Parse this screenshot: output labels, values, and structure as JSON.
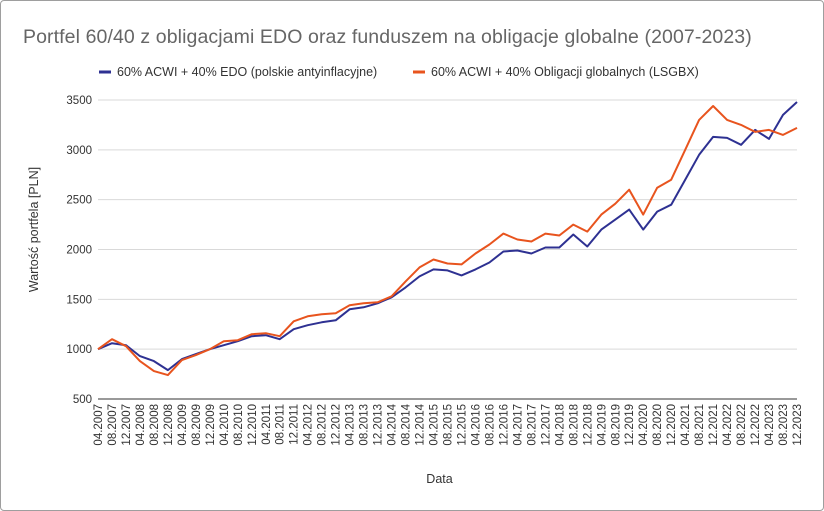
{
  "chart_data": {
    "type": "line",
    "title": "Portfel 60/40 z obligacjami EDO oraz funduszem na obligacje globalne (2007-2023)",
    "xlabel": "Data",
    "ylabel": "Wartość portfela [PLN]",
    "ylim": [
      500,
      3500
    ],
    "yticks": [
      500,
      1000,
      1500,
      2000,
      2500,
      3000,
      3500
    ],
    "grid": true,
    "legend_position": "top",
    "x_range": [
      "04.2007",
      "12.2023"
    ],
    "x_tick_labels": [
      "04.2007",
      "08.2007",
      "12.2007",
      "04.2008",
      "08.2008",
      "12.2008",
      "04.2009",
      "08.2009",
      "12.2009",
      "04.2010",
      "08.2010",
      "12.2010",
      "04.2011",
      "08.2011",
      "12.2011",
      "04.2012",
      "08.2012",
      "12.2012",
      "04.2013",
      "08.2013",
      "12.2013",
      "04.2014",
      "08.2014",
      "12.2014",
      "04.2015",
      "08.2015",
      "12.2015",
      "04.2016",
      "08.2016",
      "12.2016",
      "04.2017",
      "08.2017",
      "12.2017",
      "04.2018",
      "08.2018",
      "12.2018",
      "04.2019",
      "08.2019",
      "12.2019",
      "04.2020",
      "08.2020",
      "12.2020",
      "04.2021",
      "08.2021",
      "12.2021",
      "04.2022",
      "08.2022",
      "12.2022",
      "04.2023",
      "08.2023",
      "12.2023"
    ],
    "series": [
      {
        "name": "60% ACWI + 40% EDO (polskie antyinflacyjne)",
        "color": "#2e3192",
        "x": [
          "04.2007",
          "08.2007",
          "12.2007",
          "04.2008",
          "08.2008",
          "12.2008",
          "04.2009",
          "08.2009",
          "12.2009",
          "04.2010",
          "08.2010",
          "12.2010",
          "04.2011",
          "08.2011",
          "12.2011",
          "04.2012",
          "08.2012",
          "12.2012",
          "04.2013",
          "08.2013",
          "12.2013",
          "04.2014",
          "08.2014",
          "12.2014",
          "04.2015",
          "08.2015",
          "12.2015",
          "04.2016",
          "08.2016",
          "12.2016",
          "04.2017",
          "08.2017",
          "12.2017",
          "04.2018",
          "08.2018",
          "12.2018",
          "04.2019",
          "08.2019",
          "12.2019",
          "04.2020",
          "08.2020",
          "12.2020",
          "04.2021",
          "08.2021",
          "12.2021",
          "04.2022",
          "08.2022",
          "12.2022",
          "04.2023",
          "08.2023",
          "12.2023"
        ],
        "values": [
          1000,
          1060,
          1040,
          930,
          880,
          790,
          900,
          950,
          1000,
          1040,
          1080,
          1130,
          1140,
          1100,
          1200,
          1240,
          1270,
          1290,
          1400,
          1420,
          1460,
          1520,
          1620,
          1730,
          1800,
          1790,
          1740,
          1800,
          1870,
          1980,
          1990,
          1960,
          2020,
          2020,
          2150,
          2030,
          2200,
          2300,
          2400,
          2200,
          2380,
          2450,
          2700,
          2950,
          3130,
          3120,
          3050,
          3200,
          3110,
          3350,
          3480
        ]
      },
      {
        "name": "60% ACWI + 40% Obligacji globalnych (LSGBX)",
        "color": "#e8541e",
        "x": [
          "04.2007",
          "08.2007",
          "12.2007",
          "04.2008",
          "08.2008",
          "12.2008",
          "04.2009",
          "08.2009",
          "12.2009",
          "04.2010",
          "08.2010",
          "12.2010",
          "04.2011",
          "08.2011",
          "12.2011",
          "04.2012",
          "08.2012",
          "12.2012",
          "04.2013",
          "08.2013",
          "12.2013",
          "04.2014",
          "08.2014",
          "12.2014",
          "04.2015",
          "08.2015",
          "12.2015",
          "04.2016",
          "08.2016",
          "12.2016",
          "04.2017",
          "08.2017",
          "12.2017",
          "04.2018",
          "08.2018",
          "12.2018",
          "04.2019",
          "08.2019",
          "12.2019",
          "04.2020",
          "08.2020",
          "12.2020",
          "04.2021",
          "08.2021",
          "12.2021",
          "04.2022",
          "08.2022",
          "12.2022",
          "04.2023",
          "08.2023",
          "12.2023"
        ],
        "values": [
          1000,
          1100,
          1030,
          880,
          780,
          740,
          890,
          940,
          1000,
          1080,
          1090,
          1150,
          1160,
          1130,
          1280,
          1330,
          1350,
          1360,
          1440,
          1460,
          1470,
          1530,
          1680,
          1820,
          1900,
          1860,
          1850,
          1960,
          2050,
          2160,
          2100,
          2080,
          2160,
          2140,
          2250,
          2180,
          2350,
          2460,
          2600,
          2350,
          2620,
          2700,
          3000,
          3300,
          3440,
          3300,
          3250,
          3180,
          3200,
          3150,
          3220
        ]
      }
    ]
  }
}
